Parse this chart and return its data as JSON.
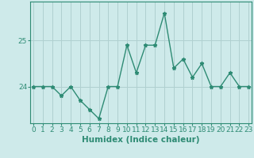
{
  "x": [
    0,
    1,
    2,
    3,
    4,
    5,
    6,
    7,
    8,
    9,
    10,
    11,
    12,
    13,
    14,
    15,
    16,
    17,
    18,
    19,
    20,
    21,
    22,
    23
  ],
  "y": [
    24.0,
    24.0,
    24.0,
    23.8,
    24.0,
    23.7,
    23.5,
    23.3,
    24.0,
    24.0,
    24.9,
    24.3,
    24.9,
    24.9,
    25.6,
    24.4,
    24.6,
    24.2,
    24.5,
    24.0,
    24.0,
    24.3,
    24.0,
    24.0
  ],
  "line_color": "#2e8b74",
  "marker": "*",
  "marker_size": 3.5,
  "bg_color": "#ceeaea",
  "grid_color": "#b0d0d0",
  "xlabel": "Humidex (Indice chaleur)",
  "ylabel": "",
  "title": "",
  "yticks": [
    24,
    25
  ],
  "ylim": [
    23.2,
    25.85
  ],
  "xlim": [
    -0.3,
    23.3
  ],
  "xlabel_fontsize": 7.5,
  "tick_fontsize": 6.5,
  "line_width": 1.0
}
